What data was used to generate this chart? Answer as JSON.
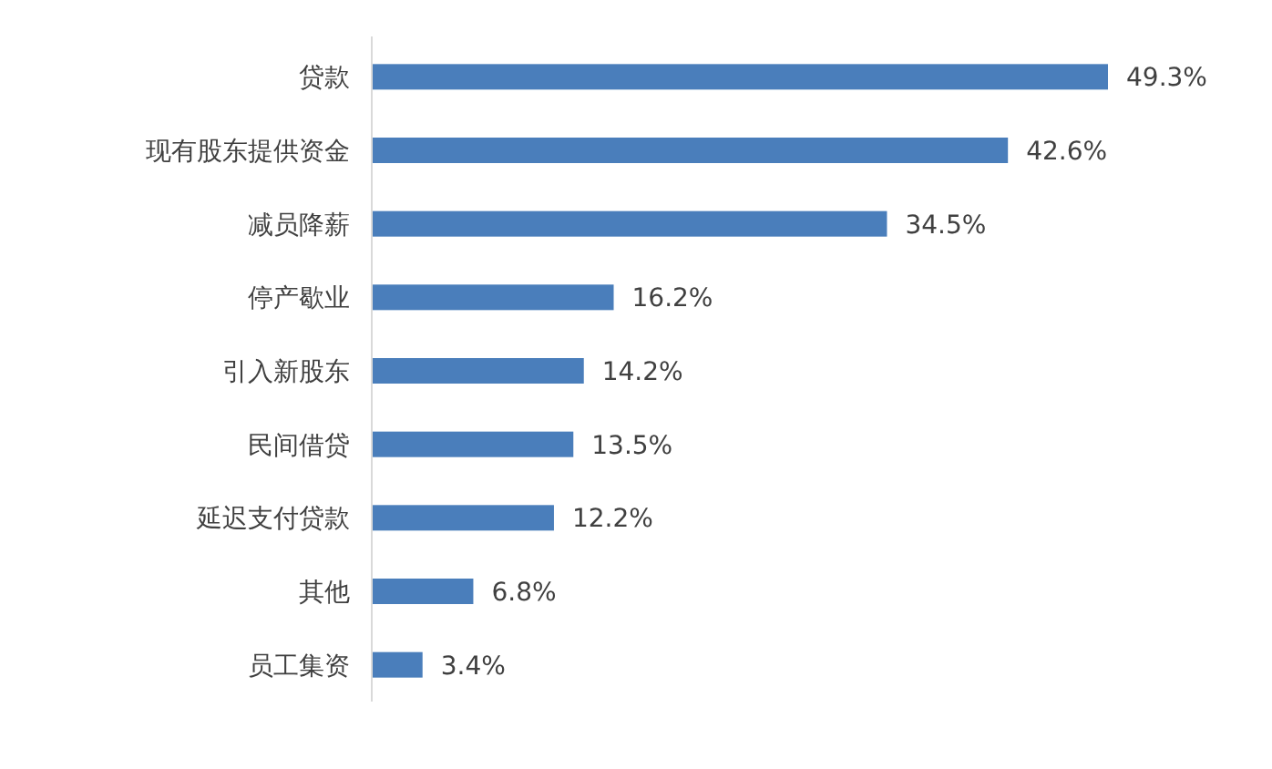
{
  "chart_data": {
    "type": "bar",
    "orientation": "horizontal",
    "categories": [
      "贷款",
      "现有股东提供资金",
      "减员降薪",
      "停产歇业",
      "引入新股东",
      "民间借贷",
      "延迟支付贷款",
      "其他",
      "员工集资"
    ],
    "values": [
      49.3,
      42.6,
      34.5,
      16.2,
      14.2,
      13.5,
      12.2,
      6.8,
      3.4
    ],
    "value_labels": [
      "49.3%",
      "42.6%",
      "34.5%",
      "16.2%",
      "14.2%",
      "13.5%",
      "12.2%",
      "6.8%",
      "3.4%"
    ],
    "color": "#4a7ebb"
  }
}
